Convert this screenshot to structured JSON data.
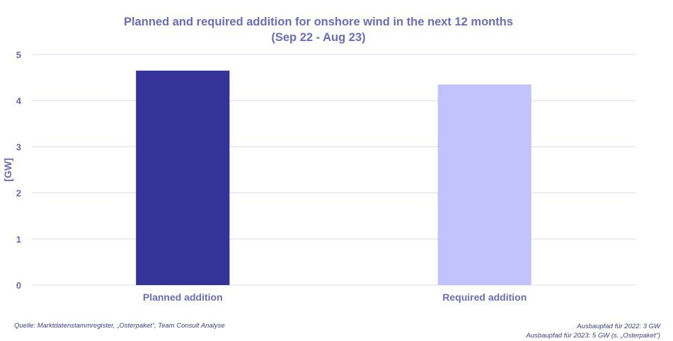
{
  "chart_data": {
    "type": "bar",
    "title": "Planned and required addition for onshore wind in the next 12 months",
    "subtitle": "(Sep 22 - Aug 23)",
    "ylabel": "[GW]",
    "xlabel": "",
    "ylim": [
      0,
      5
    ],
    "yticks": [
      0,
      1,
      2,
      3,
      4,
      5
    ],
    "grid": true,
    "categories": [
      "Planned addition",
      "Required addition"
    ],
    "values": [
      4.65,
      4.35
    ],
    "colors": [
      "#333399",
      "#c2c2ff"
    ]
  },
  "footer": {
    "source": "Quelle: Marktdatenstammregister, „Osterpaket“, Team Consult Analyse",
    "note_2022": "Ausbaupfad für 2022: 3 GW",
    "note_2023": "Ausbaupfad für 2023: 5 GW (s. „Osterpaket“)"
  },
  "colors": {
    "title": "#6b6bbf",
    "axis_text": "#6b6bbf",
    "grid": "#dcdcf0",
    "footer_text": "#3b3b8f"
  }
}
